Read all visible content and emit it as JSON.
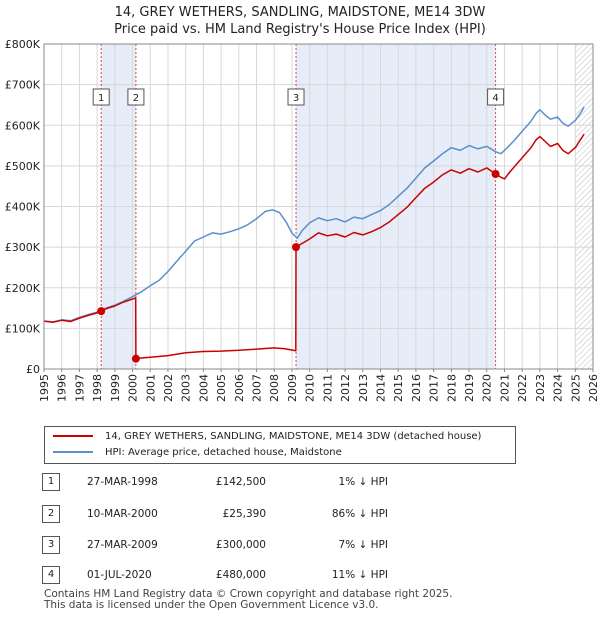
{
  "title": {
    "line1": "14, GREY WETHERS, SANDLING, MAIDSTONE, ME14 3DW",
    "line2": "Price paid vs. HM Land Registry's House Price Index (HPI)"
  },
  "chart_data": {
    "type": "line",
    "xlabel": "",
    "ylabel": "",
    "xlim": [
      1995,
      2026
    ],
    "ylim": [
      0,
      800000
    ],
    "yticks": [
      {
        "value": 0,
        "label": "£0"
      },
      {
        "value": 100000,
        "label": "£100K"
      },
      {
        "value": 200000,
        "label": "£200K"
      },
      {
        "value": 300000,
        "label": "£300K"
      },
      {
        "value": 400000,
        "label": "£400K"
      },
      {
        "value": 500000,
        "label": "£500K"
      },
      {
        "value": 600000,
        "label": "£600K"
      },
      {
        "value": 700000,
        "label": "£700K"
      },
      {
        "value": 800000,
        "label": "£800K"
      }
    ],
    "xticks": [
      "1995",
      "1996",
      "1997",
      "1998",
      "1999",
      "2000",
      "2001",
      "2002",
      "2003",
      "2004",
      "2005",
      "2006",
      "2007",
      "2008",
      "2009",
      "2010",
      "2011",
      "2012",
      "2013",
      "2014",
      "2015",
      "2016",
      "2017",
      "2018",
      "2019",
      "2020",
      "2021",
      "2022",
      "2023",
      "2024",
      "2025",
      "2026"
    ],
    "grid": true,
    "shaded_periods": [
      [
        1998.23,
        2000.19
      ],
      [
        2009.23,
        2020.5
      ]
    ],
    "forecast_hatch_from": 2025.0,
    "series": [
      {
        "name": "14, GREY WETHERS, SANDLING, MAIDSTONE, ME14 3DW (detached house)",
        "color": "#cc0000",
        "points": [
          [
            1995.0,
            118000
          ],
          [
            1995.5,
            115000
          ],
          [
            1996.0,
            120000
          ],
          [
            1996.5,
            117000
          ],
          [
            1997.0,
            125000
          ],
          [
            1997.5,
            132000
          ],
          [
            1998.0,
            138000
          ],
          [
            1998.23,
            142500
          ],
          [
            1998.6,
            150000
          ],
          [
            1999.0,
            155000
          ],
          [
            1999.5,
            165000
          ],
          [
            2000.0,
            172000
          ],
          [
            2000.18,
            175000
          ],
          [
            2000.19,
            25390
          ],
          [
            2000.5,
            27000
          ],
          [
            2001.0,
            29000
          ],
          [
            2002.0,
            33000
          ],
          [
            2003.0,
            40000
          ],
          [
            2004.0,
            43000
          ],
          [
            2005.0,
            44000
          ],
          [
            2006.0,
            46000
          ],
          [
            2007.0,
            49000
          ],
          [
            2008.0,
            52000
          ],
          [
            2008.6,
            50000
          ],
          [
            2009.22,
            45000
          ],
          [
            2009.23,
            300000
          ],
          [
            2009.6,
            310000
          ],
          [
            2010.0,
            320000
          ],
          [
            2010.5,
            335000
          ],
          [
            2011.0,
            328000
          ],
          [
            2011.5,
            332000
          ],
          [
            2012.0,
            325000
          ],
          [
            2012.5,
            336000
          ],
          [
            2013.0,
            330000
          ],
          [
            2013.5,
            338000
          ],
          [
            2014.0,
            348000
          ],
          [
            2014.5,
            362000
          ],
          [
            2015.0,
            380000
          ],
          [
            2015.5,
            398000
          ],
          [
            2016.0,
            422000
          ],
          [
            2016.5,
            445000
          ],
          [
            2017.0,
            460000
          ],
          [
            2017.5,
            478000
          ],
          [
            2018.0,
            490000
          ],
          [
            2018.5,
            482000
          ],
          [
            2019.0,
            493000
          ],
          [
            2019.5,
            485000
          ],
          [
            2020.0,
            495000
          ],
          [
            2020.5,
            480000
          ],
          [
            2020.8,
            472000
          ],
          [
            2021.0,
            468000
          ],
          [
            2021.3,
            485000
          ],
          [
            2021.6,
            500000
          ],
          [
            2022.0,
            520000
          ],
          [
            2022.5,
            545000
          ],
          [
            2022.8,
            565000
          ],
          [
            2023.0,
            572000
          ],
          [
            2023.3,
            560000
          ],
          [
            2023.6,
            548000
          ],
          [
            2024.0,
            555000
          ],
          [
            2024.3,
            538000
          ],
          [
            2024.6,
            530000
          ],
          [
            2025.0,
            545000
          ],
          [
            2025.3,
            565000
          ],
          [
            2025.5,
            578000
          ]
        ]
      },
      {
        "name": "HPI: Average price, detached house, Maidstone",
        "color": "#5b8fcc",
        "points": [
          [
            1995.0,
            118000
          ],
          [
            1995.5,
            116000
          ],
          [
            1996.0,
            121000
          ],
          [
            1996.5,
            119000
          ],
          [
            1997.0,
            127000
          ],
          [
            1997.5,
            134000
          ],
          [
            1998.0,
            140000
          ],
          [
            1998.5,
            150000
          ],
          [
            1999.0,
            157000
          ],
          [
            1999.5,
            167000
          ],
          [
            2000.0,
            178000
          ],
          [
            2000.5,
            190000
          ],
          [
            2001.0,
            205000
          ],
          [
            2001.5,
            218000
          ],
          [
            2002.0,
            240000
          ],
          [
            2002.5,
            265000
          ],
          [
            2003.0,
            290000
          ],
          [
            2003.5,
            315000
          ],
          [
            2004.0,
            325000
          ],
          [
            2004.5,
            335000
          ],
          [
            2005.0,
            332000
          ],
          [
            2005.5,
            338000
          ],
          [
            2006.0,
            345000
          ],
          [
            2006.5,
            355000
          ],
          [
            2007.0,
            370000
          ],
          [
            2007.5,
            388000
          ],
          [
            2007.9,
            392000
          ],
          [
            2008.3,
            385000
          ],
          [
            2008.7,
            360000
          ],
          [
            2009.0,
            335000
          ],
          [
            2009.3,
            322000
          ],
          [
            2009.6,
            342000
          ],
          [
            2010.0,
            360000
          ],
          [
            2010.5,
            372000
          ],
          [
            2011.0,
            365000
          ],
          [
            2011.5,
            370000
          ],
          [
            2012.0,
            362000
          ],
          [
            2012.5,
            374000
          ],
          [
            2013.0,
            370000
          ],
          [
            2013.5,
            380000
          ],
          [
            2014.0,
            390000
          ],
          [
            2014.5,
            405000
          ],
          [
            2015.0,
            425000
          ],
          [
            2015.5,
            445000
          ],
          [
            2016.0,
            470000
          ],
          [
            2016.5,
            495000
          ],
          [
            2017.0,
            512000
          ],
          [
            2017.5,
            530000
          ],
          [
            2018.0,
            545000
          ],
          [
            2018.5,
            538000
          ],
          [
            2019.0,
            550000
          ],
          [
            2019.5,
            542000
          ],
          [
            2020.0,
            548000
          ],
          [
            2020.5,
            535000
          ],
          [
            2020.8,
            530000
          ],
          [
            2021.0,
            538000
          ],
          [
            2021.5,
            560000
          ],
          [
            2022.0,
            585000
          ],
          [
            2022.5,
            610000
          ],
          [
            2022.8,
            630000
          ],
          [
            2023.0,
            638000
          ],
          [
            2023.3,
            625000
          ],
          [
            2023.6,
            615000
          ],
          [
            2024.0,
            620000
          ],
          [
            2024.3,
            605000
          ],
          [
            2024.6,
            598000
          ],
          [
            2025.0,
            612000
          ],
          [
            2025.3,
            630000
          ],
          [
            2025.5,
            645000
          ]
        ]
      }
    ],
    "markers": [
      {
        "label": "1",
        "x": 1998.23,
        "y": 142500
      },
      {
        "label": "2",
        "x": 2000.19,
        "y": 25390
      },
      {
        "label": "3",
        "x": 2009.23,
        "y": 300000
      },
      {
        "label": "4",
        "x": 2020.5,
        "y": 480000
      }
    ]
  },
  "legend": {
    "property_label": "14, GREY WETHERS, SANDLING, MAIDSTONE, ME14 3DW (detached house)",
    "hpi_label": "HPI: Average price, detached house, Maidstone"
  },
  "transactions": [
    {
      "num": "1",
      "date": "27-MAR-1998",
      "price": "£142,500",
      "hpi": "1% ↓ HPI"
    },
    {
      "num": "2",
      "date": "10-MAR-2000",
      "price": "£25,390",
      "hpi": "86% ↓ HPI"
    },
    {
      "num": "3",
      "date": "27-MAR-2009",
      "price": "£300,000",
      "hpi": "7% ↓ HPI"
    },
    {
      "num": "4",
      "date": "01-JUL-2020",
      "price": "£480,000",
      "hpi": "11% ↓ HPI"
    }
  ],
  "footer": {
    "line1": "Contains HM Land Registry data © Crown copyright and database right 2025.",
    "line2": "This data is licensed under the Open Government Licence v3.0."
  }
}
